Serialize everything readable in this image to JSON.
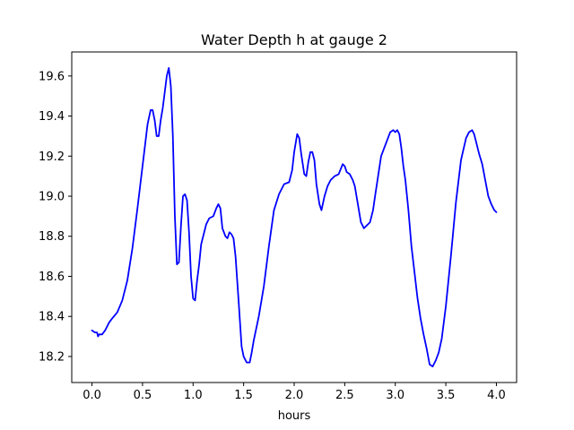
{
  "chart_data": {
    "type": "line",
    "title": "Water Depth h at gauge 2",
    "xlabel": "hours",
    "ylabel": "",
    "xlim": [
      -0.2,
      4.2
    ],
    "ylim": [
      18.07,
      19.72
    ],
    "xticks": [
      0.0,
      0.5,
      1.0,
      1.5,
      2.0,
      2.5,
      3.0,
      3.5,
      4.0
    ],
    "xtick_labels": [
      "0.0",
      "0.5",
      "1.0",
      "1.5",
      "2.0",
      "2.5",
      "3.0",
      "3.5",
      "4.0"
    ],
    "yticks": [
      18.2,
      18.4,
      18.6,
      18.8,
      19.0,
      19.2,
      19.4,
      19.6
    ],
    "ytick_labels": [
      "18.2",
      "18.4",
      "18.6",
      "18.8",
      "19.0",
      "19.2",
      "19.4",
      "19.6"
    ],
    "grid": false,
    "legend": false,
    "series": [
      {
        "color": "#0000ff",
        "x": [
          0.0,
          0.03,
          0.05,
          0.06,
          0.07,
          0.1,
          0.13,
          0.17,
          0.2,
          0.25,
          0.3,
          0.35,
          0.4,
          0.45,
          0.5,
          0.55,
          0.58,
          0.6,
          0.62,
          0.64,
          0.66,
          0.68,
          0.7,
          0.72,
          0.74,
          0.76,
          0.78,
          0.8,
          0.82,
          0.84,
          0.86,
          0.88,
          0.9,
          0.92,
          0.94,
          0.96,
          0.98,
          1.0,
          1.02,
          1.04,
          1.06,
          1.08,
          1.1,
          1.13,
          1.16,
          1.2,
          1.23,
          1.25,
          1.27,
          1.29,
          1.32,
          1.34,
          1.36,
          1.38,
          1.4,
          1.42,
          1.45,
          1.48,
          1.5,
          1.53,
          1.56,
          1.58,
          1.6,
          1.65,
          1.7,
          1.75,
          1.8,
          1.85,
          1.9,
          1.95,
          1.98,
          2.0,
          2.02,
          2.03,
          2.05,
          2.07,
          2.1,
          2.12,
          2.14,
          2.16,
          2.18,
          2.2,
          2.22,
          2.25,
          2.27,
          2.3,
          2.33,
          2.36,
          2.4,
          2.44,
          2.48,
          2.5,
          2.52,
          2.55,
          2.58,
          2.6,
          2.63,
          2.66,
          2.69,
          2.71,
          2.73,
          2.75,
          2.78,
          2.8,
          2.83,
          2.86,
          2.89,
          2.92,
          2.95,
          2.98,
          3.0,
          3.02,
          3.04,
          3.06,
          3.08,
          3.1,
          3.13,
          3.16,
          3.19,
          3.22,
          3.25,
          3.28,
          3.31,
          3.34,
          3.37,
          3.4,
          3.43,
          3.46,
          3.5,
          3.55,
          3.6,
          3.65,
          3.7,
          3.73,
          3.76,
          3.78,
          3.8,
          3.83,
          3.86,
          3.89,
          3.92,
          3.95,
          3.98,
          4.0
        ],
        "y": [
          18.33,
          18.32,
          18.32,
          18.3,
          18.31,
          18.31,
          18.33,
          18.37,
          18.39,
          18.42,
          18.48,
          18.58,
          18.74,
          18.94,
          19.15,
          19.36,
          19.43,
          19.43,
          19.38,
          19.3,
          19.3,
          19.38,
          19.44,
          19.52,
          19.6,
          19.64,
          19.55,
          19.3,
          18.9,
          18.66,
          18.67,
          18.85,
          19.0,
          19.01,
          18.98,
          18.82,
          18.6,
          18.49,
          18.48,
          18.58,
          18.66,
          18.76,
          18.8,
          18.86,
          18.89,
          18.9,
          18.94,
          18.96,
          18.94,
          18.84,
          18.8,
          18.79,
          18.82,
          18.81,
          18.79,
          18.7,
          18.48,
          18.25,
          18.2,
          18.17,
          18.17,
          18.22,
          18.28,
          18.4,
          18.55,
          18.75,
          18.93,
          19.01,
          19.06,
          19.07,
          19.13,
          19.22,
          19.28,
          19.31,
          19.29,
          19.21,
          19.11,
          19.1,
          19.17,
          19.22,
          19.22,
          19.18,
          19.06,
          18.96,
          18.93,
          19.0,
          19.05,
          19.08,
          19.1,
          19.11,
          19.16,
          19.15,
          19.12,
          19.11,
          19.08,
          19.05,
          18.96,
          18.87,
          18.84,
          18.85,
          18.86,
          18.87,
          18.93,
          19.0,
          19.1,
          19.2,
          19.24,
          19.28,
          19.32,
          19.33,
          19.32,
          19.33,
          19.31,
          19.24,
          19.15,
          19.08,
          18.93,
          18.75,
          18.62,
          18.49,
          18.39,
          18.31,
          18.24,
          18.16,
          18.15,
          18.18,
          18.22,
          18.29,
          18.45,
          18.7,
          18.97,
          19.18,
          19.29,
          19.32,
          19.33,
          19.31,
          19.27,
          19.21,
          19.16,
          19.08,
          19.0,
          18.96,
          18.93,
          18.92
        ]
      }
    ]
  }
}
